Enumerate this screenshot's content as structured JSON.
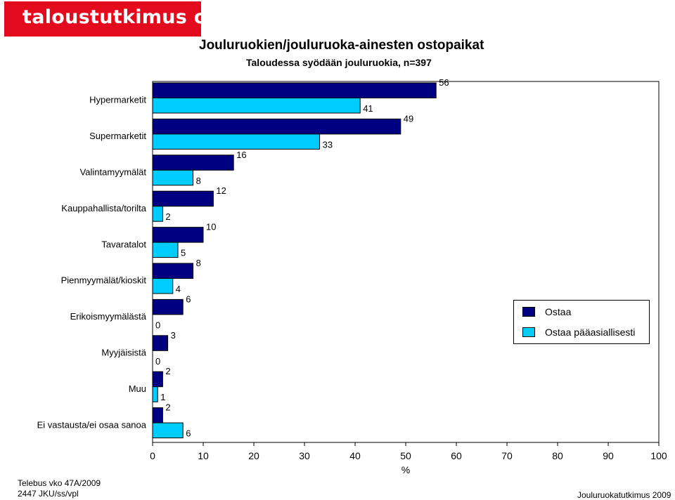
{
  "brand": {
    "logo_text": "taloustutkimus oy"
  },
  "footer": {
    "left_line1": "Telebus vko 47A/2009",
    "left_line2": "2447 JKU/ss/vpl",
    "right": "Jouluruokatutkimus 2009"
  },
  "chart_data": {
    "type": "bar",
    "orientation": "horizontal",
    "title": "Jouluruokien/jouluruoka-ainesten ostopaikat",
    "subtitle": "Taloudessa syödään jouluruokia, n=397",
    "xlabel": "%",
    "xlim": [
      0,
      100
    ],
    "xticks": [
      "0",
      "10",
      "20",
      "30",
      "40",
      "50",
      "60",
      "70",
      "80",
      "90",
      "100"
    ],
    "grid": false,
    "legend_position": "right",
    "categories": [
      "Hypermarketit",
      "Supermarketit",
      "Valintamyymälät",
      "Kauppahallista/torilta",
      "Tavaratalot",
      "Pienmyymälät/kioskit",
      "Erikoismyymälästä",
      "Myyjäisistä",
      "Muu",
      "Ei vastausta/ei osaa sanoa"
    ],
    "series": [
      {
        "name": "Ostaa",
        "color": "#000080",
        "values": [
          56,
          49,
          16,
          12,
          10,
          8,
          6,
          3,
          2,
          2
        ]
      },
      {
        "name": "Ostaa pääasiallisesti",
        "color": "#00ccff",
        "values": [
          41,
          33,
          8,
          2,
          5,
          4,
          0,
          0,
          1,
          6
        ]
      }
    ]
  }
}
